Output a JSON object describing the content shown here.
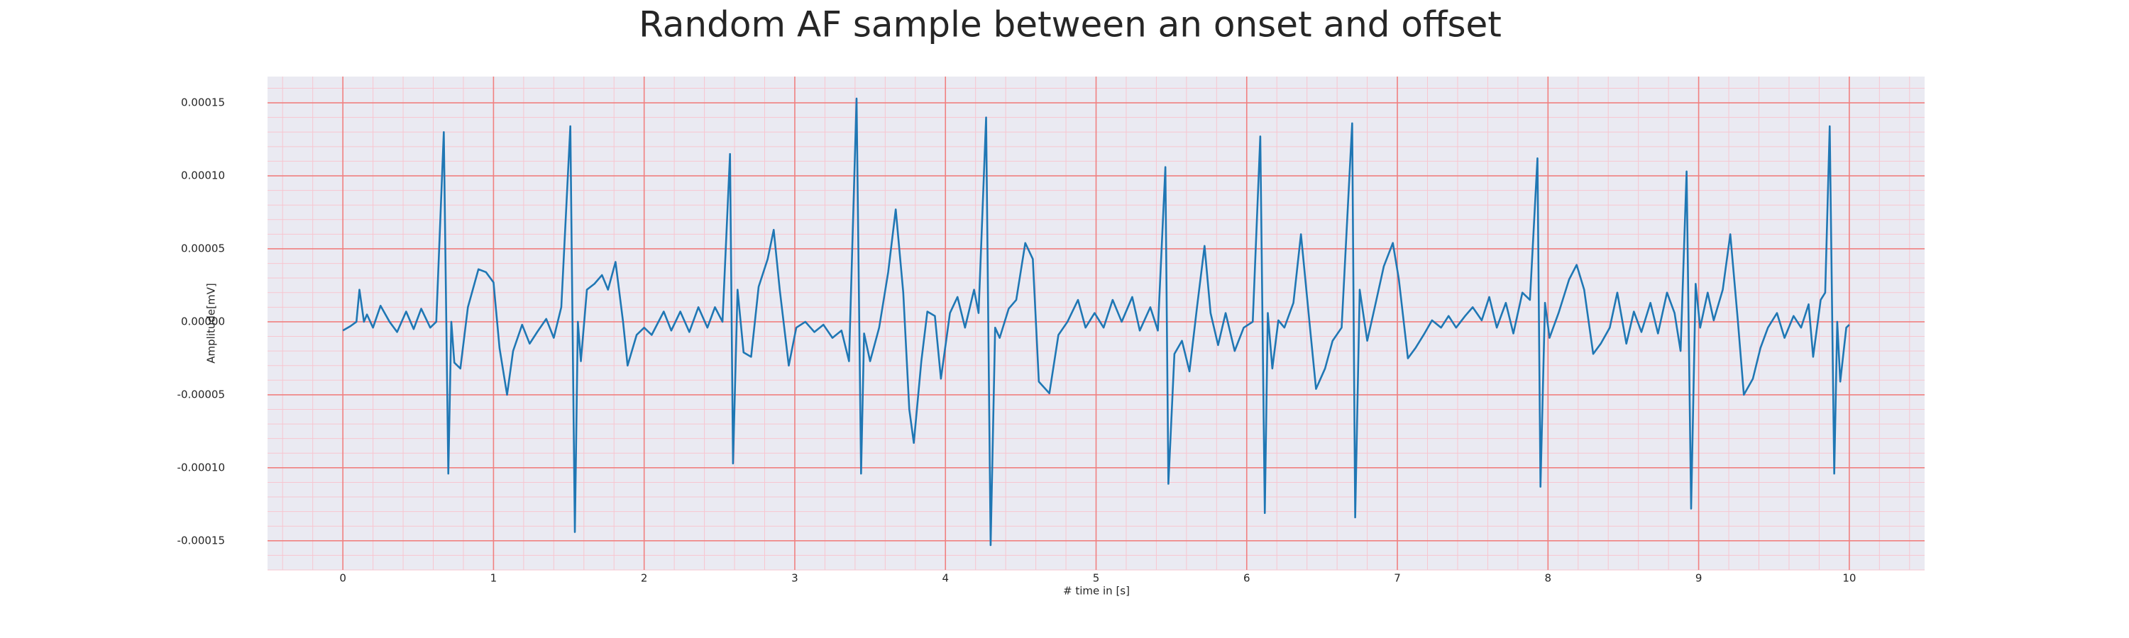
{
  "chart_data": {
    "type": "line",
    "title": "Random AF sample between an onset and offset",
    "x_label": "# time in [s]",
    "y_label": "Amplitude[mV]",
    "color": "#1f77b4",
    "grid": true,
    "minor_grid": true,
    "xlim": [
      -0.5,
      10.5
    ],
    "ylim": [
      -0.00017,
      0.000168
    ],
    "xticks": [
      0,
      1,
      2,
      3,
      4,
      5,
      6,
      7,
      8,
      9,
      10
    ],
    "yticks": [
      -0.00015,
      {
        "value": -0.0001,
        "label": "-0.00010"
      },
      -5e-05,
      {
        "value": 0,
        "label": "0.00000"
      },
      5e-05,
      {
        "value": 0.0001,
        "label": "0.00010"
      },
      0.00015
    ],
    "x": [
      0,
      0.05,
      0.09,
      0.11,
      0.14,
      0.16,
      0.2,
      0.25,
      0.31,
      0.36,
      0.42,
      0.47,
      0.52,
      0.58,
      0.62,
      0.67,
      0.7,
      0.72,
      0.74,
      0.78,
      0.83,
      0.9,
      0.95,
      1.0,
      1.04,
      1.09,
      1.13,
      1.19,
      1.24,
      1.29,
      1.35,
      1.4,
      1.45,
      1.51,
      1.54,
      1.56,
      1.58,
      1.62,
      1.67,
      1.72,
      1.76,
      1.81,
      1.86,
      1.89,
      1.95,
      2.0,
      2.05,
      2.13,
      2.18,
      2.24,
      2.3,
      2.36,
      2.42,
      2.47,
      2.52,
      2.57,
      2.59,
      2.62,
      2.66,
      2.71,
      2.76,
      2.82,
      2.86,
      2.9,
      2.96,
      3.01,
      3.07,
      3.13,
      3.19,
      3.25,
      3.31,
      3.36,
      3.41,
      3.44,
      3.46,
      3.5,
      3.56,
      3.62,
      3.67,
      3.72,
      3.76,
      3.79,
      3.84,
      3.88,
      3.93,
      3.97,
      4.03,
      4.08,
      4.13,
      4.19,
      4.22,
      4.27,
      4.3,
      4.33,
      4.36,
      4.42,
      4.47,
      4.53,
      4.58,
      4.62,
      4.69,
      4.75,
      4.81,
      4.88,
      4.93,
      4.99,
      5.05,
      5.11,
      5.17,
      5.24,
      5.29,
      5.36,
      5.41,
      5.46,
      5.48,
      5.52,
      5.57,
      5.62,
      5.67,
      5.72,
      5.76,
      5.81,
      5.86,
      5.92,
      5.98,
      6.04,
      6.09,
      6.12,
      6.14,
      6.17,
      6.21,
      6.25,
      6.31,
      6.36,
      6.42,
      6.46,
      6.52,
      6.57,
      6.63,
      6.7,
      6.72,
      6.75,
      6.8,
      6.85,
      6.91,
      6.97,
      7.01,
      7.07,
      7.12,
      7.18,
      7.23,
      7.29,
      7.34,
      7.39,
      7.45,
      7.5,
      7.56,
      7.61,
      7.66,
      7.72,
      7.77,
      7.83,
      7.88,
      7.93,
      7.95,
      7.98,
      8.01,
      8.07,
      8.14,
      8.19,
      8.24,
      8.3,
      8.35,
      8.41,
      8.46,
      8.52,
      8.57,
      8.62,
      8.68,
      8.73,
      8.79,
      8.84,
      8.88,
      8.92,
      8.95,
      8.98,
      9.01,
      9.06,
      9.1,
      9.16,
      9.21,
      9.26,
      9.3,
      9.36,
      9.41,
      9.46,
      9.52,
      9.57,
      9.63,
      9.68,
      9.73,
      9.76,
      9.81,
      9.84,
      9.87,
      9.9,
      9.92,
      9.94,
      9.98,
      10.0
    ],
    "values": [
      -6e-06,
      -3e-06,
      0.0,
      2.2e-05,
      0.0,
      5e-06,
      -4e-06,
      1.1e-05,
      0.0,
      -7e-06,
      7e-06,
      -5e-06,
      9e-06,
      -4e-06,
      0.0,
      0.00013,
      -0.000104,
      0.0,
      -2.8e-05,
      -3.2e-05,
      1e-05,
      3.6e-05,
      3.4e-05,
      2.7e-05,
      -1.8e-05,
      -5e-05,
      -2e-05,
      -2e-06,
      -1.5e-05,
      -7e-06,
      2e-06,
      -1.1e-05,
      1e-05,
      0.000134,
      -0.000144,
      0.0,
      -2.7e-05,
      2.2e-05,
      2.6e-05,
      3.2e-05,
      2.2e-05,
      4.1e-05,
      0.0,
      -3e-05,
      -9e-06,
      -4e-06,
      -9e-06,
      7e-06,
      -6e-06,
      7e-06,
      -7e-06,
      1e-05,
      -4e-06,
      1e-05,
      0.0,
      0.000115,
      -9.7e-05,
      2.2e-05,
      -2.1e-05,
      -2.4e-05,
      2.4e-05,
      4.3e-05,
      6.3e-05,
      2.2e-05,
      -3e-05,
      -4e-06,
      0.0,
      -7e-06,
      -2e-06,
      -1.1e-05,
      -6e-06,
      -2.7e-05,
      0.000153,
      -0.000104,
      -8e-06,
      -2.7e-05,
      -4e-06,
      3.4e-05,
      7.7e-05,
      2e-05,
      -6e-05,
      -8.3e-05,
      -2.7e-05,
      7e-06,
      4e-06,
      -3.9e-05,
      6e-06,
      1.7e-05,
      -4e-06,
      2.2e-05,
      6e-06,
      0.00014,
      -0.000153,
      -4e-06,
      -1.1e-05,
      9e-06,
      1.5e-05,
      5.4e-05,
      4.3e-05,
      -4.1e-05,
      -4.9e-05,
      -9e-06,
      0.0,
      1.5e-05,
      -4e-06,
      6e-06,
      -4e-06,
      1.5e-05,
      0.0,
      1.7e-05,
      -6e-06,
      1e-05,
      -6e-06,
      0.000106,
      -0.000111,
      -2.2e-05,
      -1.3e-05,
      -3.4e-05,
      1e-05,
      5.2e-05,
      6e-06,
      -1.6e-05,
      6e-06,
      -2e-05,
      -4e-06,
      0.0,
      0.000127,
      -0.000131,
      6e-06,
      -3.2e-05,
      1e-06,
      -4e-06,
      1.3e-05,
      6e-05,
      -4e-06,
      -4.6e-05,
      -3.2e-05,
      -1.3e-05,
      -4e-06,
      0.000136,
      -0.000134,
      2.2e-05,
      -1.3e-05,
      1e-05,
      3.8e-05,
      5.4e-05,
      2.9e-05,
      -2.5e-05,
      -1.8e-05,
      -8e-06,
      1e-06,
      -4e-06,
      4e-06,
      -4e-06,
      4e-06,
      1e-05,
      1e-06,
      1.7e-05,
      -4e-06,
      1.3e-05,
      -8e-06,
      2e-05,
      1.5e-05,
      0.000112,
      -0.000113,
      1.3e-05,
      -1.1e-05,
      6e-06,
      2.9e-05,
      3.9e-05,
      2.2e-05,
      -2.2e-05,
      -1.5e-05,
      -4e-06,
      2e-05,
      -1.5e-05,
      7e-06,
      -7e-06,
      1.3e-05,
      -8e-06,
      2e-05,
      6e-06,
      -2e-05,
      0.000103,
      -0.000128,
      2.6e-05,
      -4e-06,
      2e-05,
      1e-06,
      2.2e-05,
      6e-05,
      1e-06,
      -5e-05,
      -3.9e-05,
      -1.8e-05,
      -4e-06,
      6e-06,
      -1.1e-05,
      4e-06,
      -4e-06,
      1.2e-05,
      -2.4e-05,
      1.5e-05,
      2e-05,
      0.000134,
      -0.000104,
      0.0,
      -4.1e-05,
      -4e-06,
      -2e-06
    ]
  }
}
